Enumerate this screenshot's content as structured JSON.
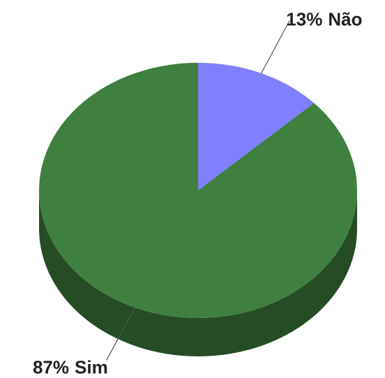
{
  "chart_data": {
    "type": "pie3d",
    "categories": [
      "Não",
      "Sim"
    ],
    "values": [
      13,
      87
    ],
    "value_labels": [
      "13%",
      "87%"
    ],
    "colors": [
      "#8080ff",
      "#3f7f3f"
    ]
  }
}
